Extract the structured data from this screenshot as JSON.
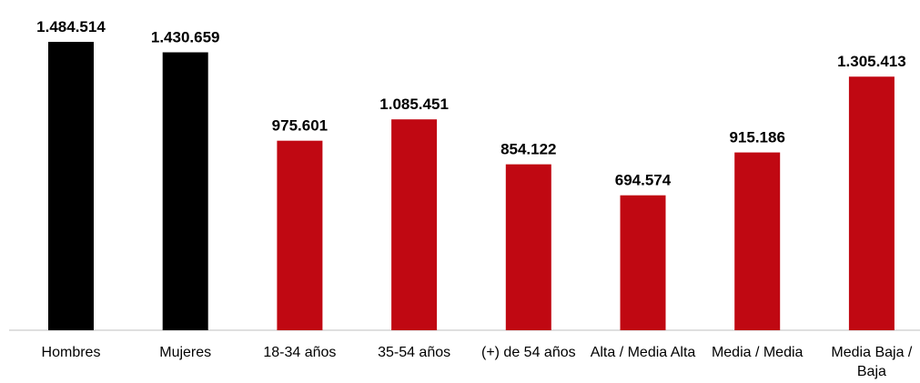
{
  "chart_data": {
    "type": "bar",
    "categories": [
      "Hombres",
      "Mujeres",
      "18-34 años",
      "35-54 años",
      "(+) de 54 años",
      "Alta / Media Alta",
      "Media / Media",
      "Media Baja / Baja"
    ],
    "values": [
      1484514,
      1430659,
      975601,
      1085451,
      854122,
      694574,
      915186,
      1305413
    ],
    "value_labels": [
      "1.484.514",
      "1.430.659",
      "975.601",
      "1.085.451",
      "854.122",
      "694.574",
      "915.186",
      "1.305.413"
    ],
    "colors": [
      "#000000",
      "#000000",
      "#c00812",
      "#c00812",
      "#c00812",
      "#c00812",
      "#c00812",
      "#c00812"
    ]
  }
}
